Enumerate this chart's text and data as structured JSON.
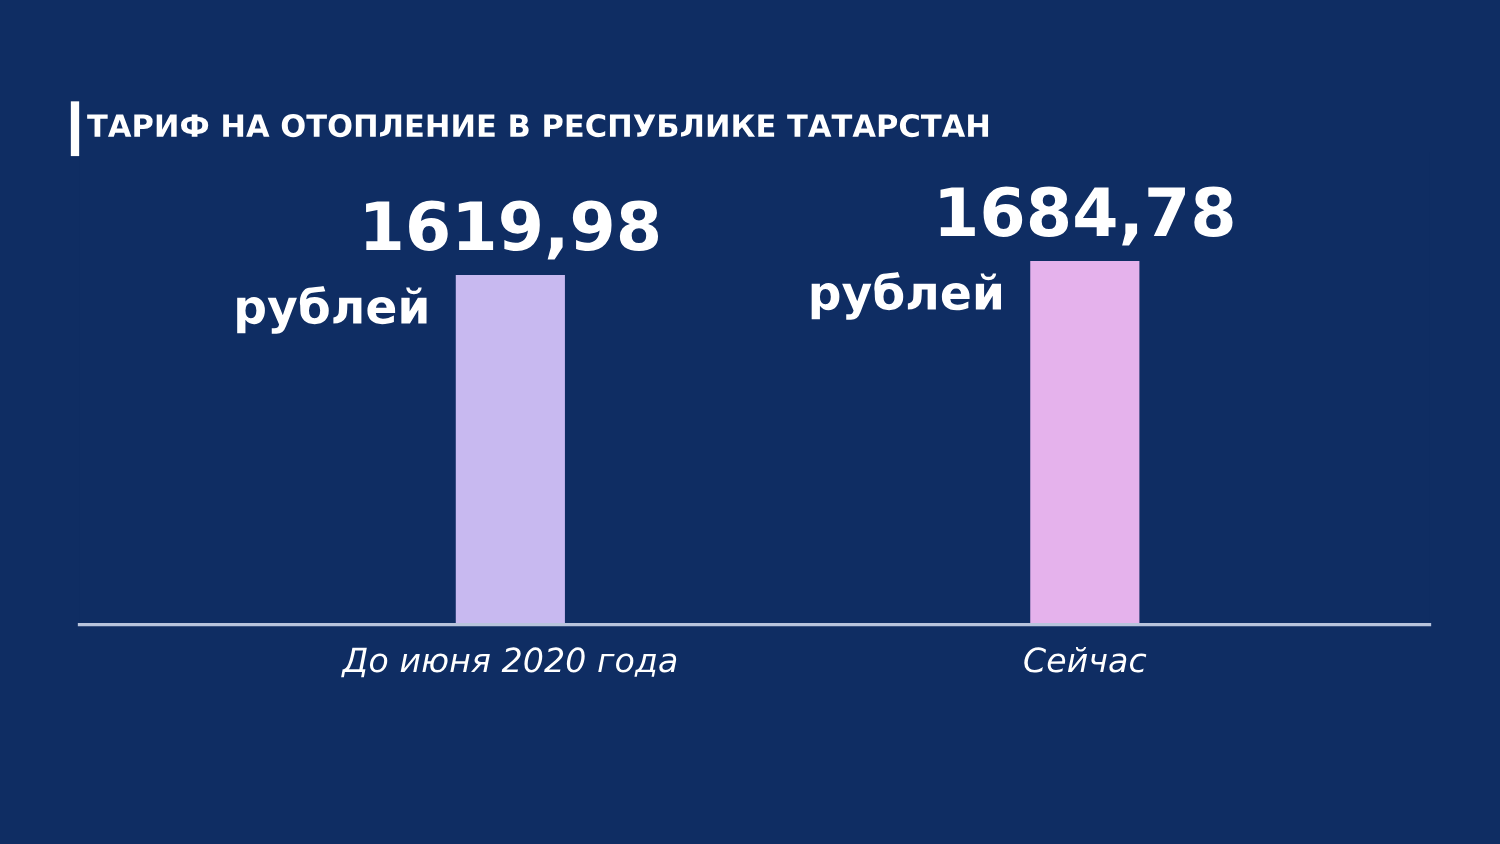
{
  "chart_data": {
    "type": "bar",
    "title": "ТАРИФ НА ОТОПЛЕНИЕ В РЕСПУБЛИКЕ ТАТАРСТАН",
    "categories": [
      "До июня 2020 года",
      "Сейчас"
    ],
    "values": [
      1619.98,
      1684.78
    ],
    "colors": [
      "#c8b9f0",
      "#e5b2ec"
    ],
    "value_labels": [
      "1619,98",
      "1684,78"
    ],
    "annotations": [
      "рублей",
      "рублей"
    ],
    "grid": false,
    "legend": false
  }
}
